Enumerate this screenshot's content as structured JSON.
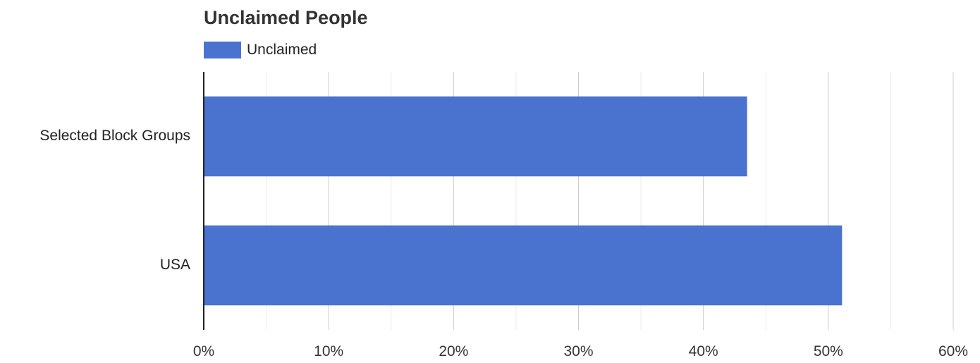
{
  "chart_data": {
    "type": "bar",
    "orientation": "horizontal",
    "title": "Unclaimed People",
    "categories": [
      "Selected Block Groups",
      "USA"
    ],
    "series": [
      {
        "name": "Unclaimed",
        "values": [
          43.5,
          51.1
        ],
        "color": "#4a73cf"
      }
    ],
    "xlim": [
      0,
      60
    ],
    "x_ticks": [
      0,
      10,
      20,
      30,
      40,
      50,
      60
    ],
    "x_tick_labels": [
      "0%",
      "10%",
      "20%",
      "30%",
      "40%",
      "50%",
      "60%"
    ],
    "xlabel": "",
    "ylabel": "",
    "grid": true,
    "legend_position": "top-left"
  }
}
